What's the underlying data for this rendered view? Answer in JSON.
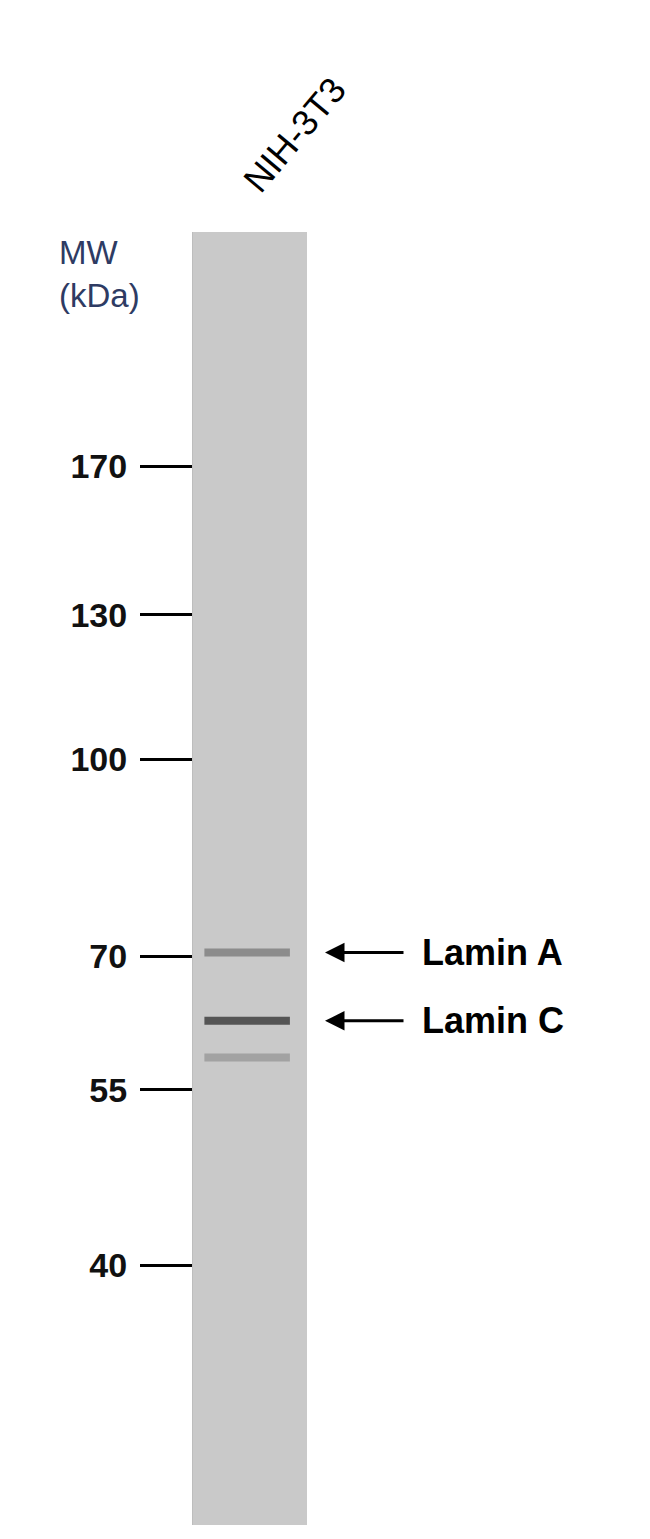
{
  "chart_data": {
    "type": "western_blot",
    "lane": "NIH-3T3",
    "ylabel": "MW (kDa)",
    "log": "y",
    "ylim": [
      25,
      260
    ],
    "yticks": [
      170,
      130,
      100,
      70,
      55,
      40
    ],
    "categories": [
      "Lamin A",
      "Lamin C",
      null
    ],
    "values": [
      70.5,
      62.3,
      58.3
    ],
    "colors": [
      "#8c8c8c",
      "#555555",
      "#a2a2a2"
    ],
    "color": "#c9c9c9"
  }
}
